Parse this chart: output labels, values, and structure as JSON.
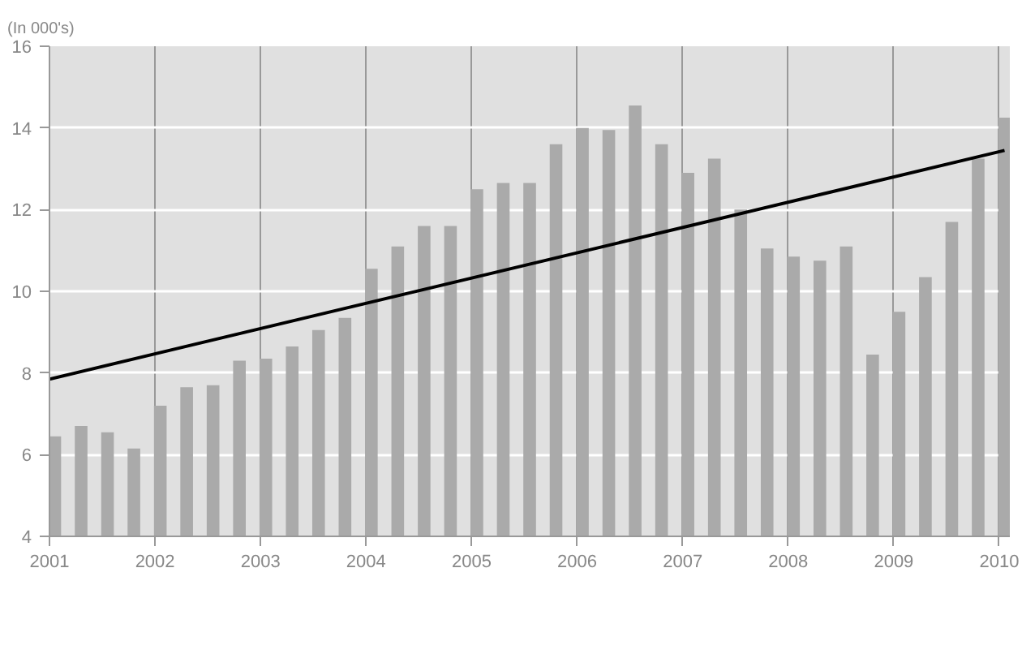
{
  "chart_data": {
    "type": "bar",
    "ylabel": "(In 000's)",
    "x": [
      2001.05,
      2001.3,
      2001.55,
      2001.8,
      2002.05,
      2002.3,
      2002.55,
      2002.8,
      2003.05,
      2003.3,
      2003.55,
      2003.8,
      2004.05,
      2004.3,
      2004.55,
      2004.8,
      2005.05,
      2005.3,
      2005.55,
      2005.8,
      2006.05,
      2006.3,
      2006.55,
      2006.8,
      2007.05,
      2007.3,
      2007.55,
      2007.8,
      2008.05,
      2008.3,
      2008.55,
      2008.8,
      2009.05,
      2009.3,
      2009.55,
      2009.8,
      2010.05
    ],
    "series": [
      {
        "color": "#aaaaaa",
        "values": [
          6.45,
          6.7,
          6.55,
          6.15,
          7.2,
          7.65,
          7.7,
          8.3,
          8.35,
          8.65,
          9.05,
          9.35,
          10.55,
          11.1,
          11.6,
          11.6,
          12.5,
          12.65,
          12.65,
          13.6,
          14.0,
          13.95,
          14.55,
          13.6,
          12.9,
          13.25,
          12.0,
          11.05,
          10.85,
          10.75,
          11.1,
          8.45,
          9.5,
          10.35,
          11.7,
          13.25,
          14.25
        ]
      },
      {
        "type": "line",
        "color": "#000000",
        "x": [
          2001,
          2010.05
        ],
        "values": [
          7.85,
          13.45
        ]
      }
    ],
    "xlim": [
      2001,
      2010.1
    ],
    "ylim": [
      4,
      16
    ],
    "xticks": [
      2001,
      2002,
      2003,
      2004,
      2005,
      2006,
      2007,
      2008,
      2009,
      2010
    ],
    "yticks": [
      4,
      6,
      8,
      10,
      12,
      14,
      16
    ],
    "grid": true
  }
}
